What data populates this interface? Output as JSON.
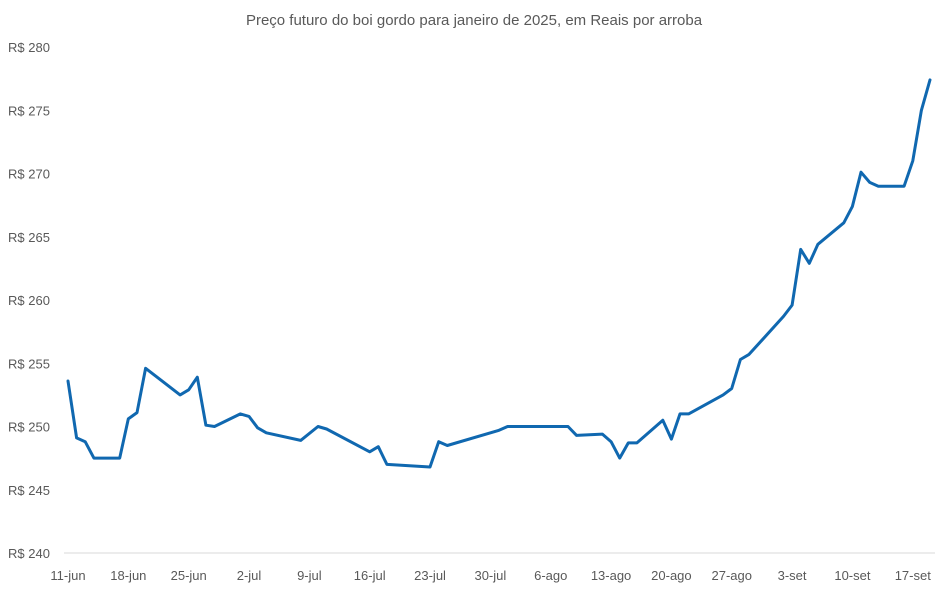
{
  "chart_data": {
    "type": "line",
    "title": "Preço futuro do boi gordo para janeiro de 2025, em Reais por arroba",
    "xlabel": "",
    "ylabel": "",
    "ylim": [
      240,
      280
    ],
    "yticks": [
      240,
      245,
      250,
      255,
      260,
      265,
      270,
      275,
      280
    ],
    "ytick_labels": [
      "R$ 240",
      "R$ 245",
      "R$ 250",
      "R$ 255",
      "R$ 260",
      "R$ 265",
      "R$ 270",
      "R$ 275",
      "R$ 280"
    ],
    "xlim": [
      "2024-06-11",
      "2024-09-19"
    ],
    "xticks": [
      "2024-06-11",
      "2024-06-18",
      "2024-06-25",
      "2024-07-02",
      "2024-07-09",
      "2024-07-16",
      "2024-07-23",
      "2024-07-30",
      "2024-08-06",
      "2024-08-13",
      "2024-08-20",
      "2024-08-27",
      "2024-09-03",
      "2024-09-10",
      "2024-09-17"
    ],
    "xtick_labels": [
      "11-jun",
      "18-jun",
      "25-jun",
      "2-jul",
      "9-jul",
      "16-jul",
      "23-jul",
      "30-jul",
      "6-ago",
      "13-ago",
      "20-ago",
      "27-ago",
      "3-set",
      "10-set",
      "17-set"
    ],
    "grid": false,
    "line_color": "#1068B0",
    "series": [
      {
        "x": [
          "2024-06-11",
          "2024-06-12",
          "2024-06-13",
          "2024-06-14",
          "2024-06-17",
          "2024-06-18",
          "2024-06-19",
          "2024-06-20",
          "2024-06-24",
          "2024-06-25",
          "2024-06-26",
          "2024-06-27",
          "2024-06-28",
          "2024-07-01",
          "2024-07-02",
          "2024-07-03",
          "2024-07-04",
          "2024-07-08",
          "2024-07-10",
          "2024-07-11",
          "2024-07-16",
          "2024-07-17",
          "2024-07-18",
          "2024-07-23",
          "2024-07-24",
          "2024-07-25",
          "2024-07-31",
          "2024-08-01",
          "2024-08-07",
          "2024-08-08",
          "2024-08-09",
          "2024-08-12",
          "2024-08-13",
          "2024-08-14",
          "2024-08-15",
          "2024-08-16",
          "2024-08-19",
          "2024-08-20",
          "2024-08-21",
          "2024-08-22",
          "2024-08-26",
          "2024-08-27",
          "2024-08-28",
          "2024-08-29",
          "2024-09-02",
          "2024-09-03",
          "2024-09-04",
          "2024-09-05",
          "2024-09-06",
          "2024-09-09",
          "2024-09-10",
          "2024-09-11",
          "2024-09-12",
          "2024-09-13",
          "2024-09-16",
          "2024-09-17",
          "2024-09-18",
          "2024-09-19"
        ],
        "values": [
          253.6,
          249.1,
          248.8,
          247.5,
          247.5,
          250.6,
          251.1,
          254.6,
          252.5,
          252.9,
          253.9,
          250.1,
          250.0,
          251.0,
          250.8,
          249.9,
          249.5,
          248.9,
          250.0,
          249.8,
          248.0,
          248.4,
          247.0,
          246.8,
          248.8,
          248.5,
          249.7,
          250.0,
          250.0,
          250.0,
          249.3,
          249.4,
          248.8,
          247.5,
          248.7,
          248.7,
          250.5,
          249.0,
          251.0,
          251.0,
          252.5,
          253.0,
          255.3,
          255.7,
          258.7,
          259.6,
          264.0,
          262.9,
          264.4,
          266.1,
          267.4,
          270.1,
          269.3,
          269.0,
          269.0,
          271.0,
          275.0,
          277.4
        ]
      }
    ]
  }
}
